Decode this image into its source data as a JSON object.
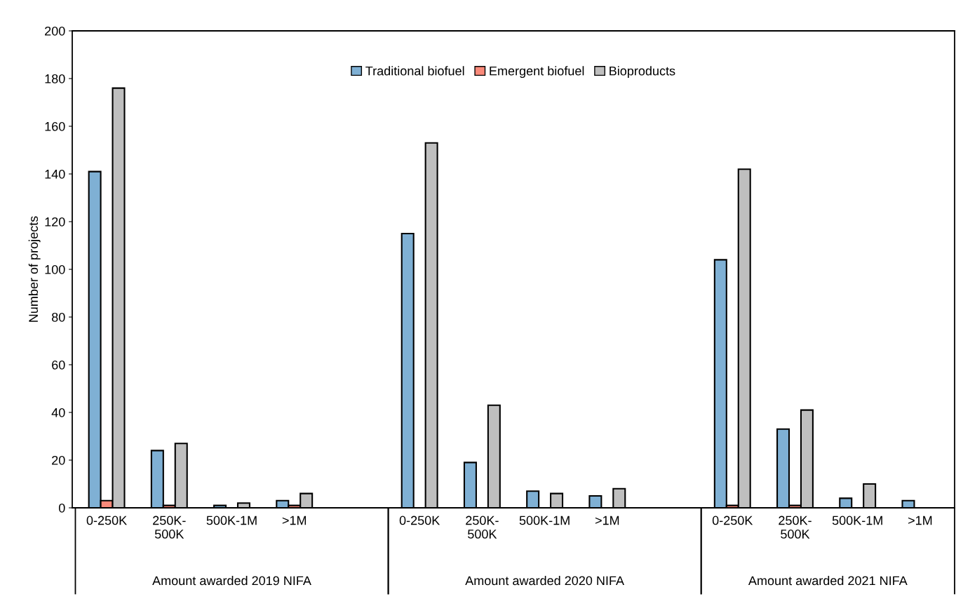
{
  "chart_data": {
    "type": "bar",
    "ylabel": "Number of projects",
    "categories": [
      "0-250K",
      "250K-\n500K",
      "500K-1M",
      ">1M",
      null,
      "0-250K",
      "250K-\n500K",
      "500K-1M",
      ">1M",
      null,
      "0-250K",
      "250K-\n500K",
      "500K-1M",
      ">1M"
    ],
    "series": [
      {
        "name": "Traditional biofuel",
        "color": "#7fb0d4",
        "values": [
          141,
          24,
          1,
          3,
          null,
          115,
          19,
          7,
          5,
          null,
          104,
          33,
          4,
          3
        ]
      },
      {
        "name": "Emergent biofuel",
        "color": "#fa8a7a",
        "values": [
          3,
          1,
          0,
          1,
          null,
          0,
          0,
          0,
          0,
          null,
          1,
          1,
          0,
          0
        ]
      },
      {
        "name": "Bioproducts",
        "color": "#bfbfbf",
        "values": [
          176,
          27,
          2,
          6,
          null,
          153,
          43,
          6,
          8,
          null,
          142,
          41,
          10,
          0
        ]
      }
    ],
    "annotations": [
      "Amount awarded 2019 NIFA",
      "Amount awarded 2020 NIFA",
      "Amount awarded 2021 NIFA"
    ],
    "ylim": [
      0,
      200
    ],
    "yticks": [
      0,
      20,
      40,
      60,
      80,
      100,
      120,
      140,
      160,
      180,
      200
    ],
    "grid": false,
    "legend": "top"
  }
}
